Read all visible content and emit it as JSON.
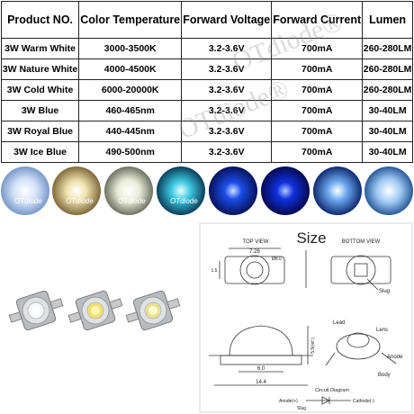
{
  "table": {
    "headers": [
      "Product NO.",
      "Color Temperature",
      "Forward Voltage",
      "Forward Current",
      "Lumen"
    ],
    "rows": [
      [
        "3W Warm White",
        "3000-3500K",
        "3.2-3.6V",
        "700mA",
        "260-280LM"
      ],
      [
        "3W Nature White",
        "4000-4500K",
        "3.2-3.6V",
        "700mA",
        "260-280LM"
      ],
      [
        "3W Cold White",
        "6000-20000K",
        "3.2-3.6V",
        "700mA",
        "260-280LM"
      ],
      [
        "3W Blue",
        "460-465nm",
        "3.2-3.6V",
        "700mA",
        "30-40LM"
      ],
      [
        "3W Royal Blue",
        "440-445nm",
        "3.2-3.6V",
        "700mA",
        "30-40LM"
      ],
      [
        "3W Ice Blue",
        "490-500nm",
        "3.2-3.6V",
        "700mA",
        "30-40LM"
      ]
    ]
  },
  "watermark": "OTdiode®",
  "photo_label": "OTdiode",
  "diagram": {
    "title": "Size",
    "top_view": "TOP VIEW",
    "bottom_view": "BOTTOM VIEW",
    "dims": {
      "width": "7.26",
      "lens_diameter": "Ø8.0",
      "lead_width": "1.5",
      "height": "5.5(ref.)",
      "base_width": "6.0",
      "total_length": "14.4"
    },
    "labels": {
      "slug": "Slug",
      "lead": "Lead",
      "lens": "Lens",
      "anode": "Anode",
      "body": "Body"
    },
    "circuit": {
      "title": "Circuit Diagram",
      "anode": "Anode(+)",
      "cathode": "Cathode(-)",
      "slug": "Slug"
    }
  }
}
